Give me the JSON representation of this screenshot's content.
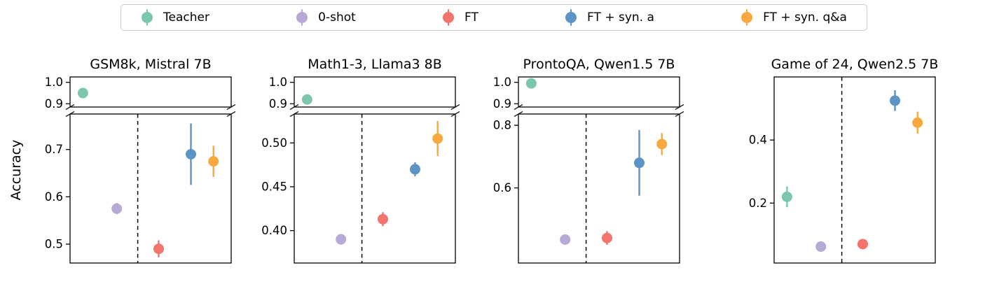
{
  "figure": {
    "ylabel": "Accuracy"
  },
  "colors": {
    "teacher": "#7CC6AE",
    "zero_shot": "#B7A9D5",
    "ft": "#F3746C",
    "ft_syn_a": "#5C94C6",
    "ft_syn_qa": "#F7A940",
    "axis": "#000000",
    "legend_border": "#CCCCCC"
  },
  "legend": {
    "position": "top-center",
    "items": [
      {
        "label": "Teacher",
        "color_key": "teacher"
      },
      {
        "label": "0-shot",
        "color_key": "zero_shot"
      },
      {
        "label": "FT",
        "color_key": "ft"
      },
      {
        "label": "FT + syn. a",
        "color_key": "ft_syn_a"
      },
      {
        "label": "FT + syn. q&a",
        "color_key": "ft_syn_qa"
      }
    ]
  },
  "chart_data": [
    {
      "type": "scatter",
      "title": "GSM8k, Mistral 7B",
      "ylabel": "Accuracy",
      "xlabel": "",
      "grid": false,
      "broken_axis": true,
      "divider_x": 0.42,
      "top_panel": {
        "ylim": [
          0.885,
          1.025
        ],
        "yticks": [
          {
            "v": 1.0,
            "label": "1.0"
          },
          {
            "v": 0.9,
            "label": "0.9"
          }
        ]
      },
      "bottom_panel": {
        "ylim": [
          0.46,
          0.775
        ],
        "yticks": [
          {
            "v": 0.7,
            "label": "0.7"
          },
          {
            "v": 0.6,
            "label": "0.6"
          },
          {
            "v": 0.5,
            "label": "0.5"
          }
        ]
      },
      "points": [
        {
          "series": "Teacher",
          "color_key": "teacher",
          "panel": "top",
          "x": 0.08,
          "y": 0.95,
          "err": 0.012
        },
        {
          "series": "0-shot",
          "color_key": "zero_shot",
          "panel": "bottom",
          "x": 0.29,
          "y": 0.575,
          "err": 0.012
        },
        {
          "series": "FT",
          "color_key": "ft",
          "panel": "bottom",
          "x": 0.55,
          "y": 0.49,
          "err": 0.018
        },
        {
          "series": "FT + syn. a",
          "color_key": "ft_syn_a",
          "panel": "bottom",
          "x": 0.75,
          "y": 0.69,
          "err": 0.065
        },
        {
          "series": "FT + syn. q&a",
          "color_key": "ft_syn_qa",
          "panel": "bottom",
          "x": 0.89,
          "y": 0.675,
          "err": 0.033
        }
      ]
    },
    {
      "type": "scatter",
      "title": "Math1-3, Llama3 8B",
      "ylabel": "Accuracy",
      "xlabel": "",
      "grid": false,
      "broken_axis": true,
      "divider_x": 0.42,
      "top_panel": {
        "ylim": [
          0.885,
          1.025
        ],
        "yticks": [
          {
            "v": 1.0,
            "label": "1.0"
          },
          {
            "v": 0.9,
            "label": "0.9"
          }
        ]
      },
      "bottom_panel": {
        "ylim": [
          0.363,
          0.533
        ],
        "yticks": [
          {
            "v": 0.5,
            "label": "0.50"
          },
          {
            "v": 0.45,
            "label": "0.45"
          },
          {
            "v": 0.4,
            "label": "0.40"
          }
        ]
      },
      "points": [
        {
          "series": "Teacher",
          "color_key": "teacher",
          "panel": "top",
          "x": 0.08,
          "y": 0.92,
          "err": 0.008
        },
        {
          "series": "0-shot",
          "color_key": "zero_shot",
          "panel": "bottom",
          "x": 0.29,
          "y": 0.39,
          "err": 0.006
        },
        {
          "series": "FT",
          "color_key": "ft",
          "panel": "bottom",
          "x": 0.55,
          "y": 0.413,
          "err": 0.008
        },
        {
          "series": "FT + syn. a",
          "color_key": "ft_syn_a",
          "panel": "bottom",
          "x": 0.75,
          "y": 0.47,
          "err": 0.008
        },
        {
          "series": "FT + syn. q&a",
          "color_key": "ft_syn_qa",
          "panel": "bottom",
          "x": 0.89,
          "y": 0.505,
          "err": 0.02
        }
      ]
    },
    {
      "type": "scatter",
      "title": "ProntoQA, Qwen1.5 7B",
      "ylabel": "Accuracy",
      "xlabel": "",
      "grid": false,
      "broken_axis": true,
      "divider_x": 0.42,
      "top_panel": {
        "ylim": [
          0.885,
          1.025
        ],
        "yticks": [
          {
            "v": 1.0,
            "label": "1.0"
          },
          {
            "v": 0.9,
            "label": "0.9"
          }
        ]
      },
      "bottom_panel": {
        "ylim": [
          0.36,
          0.836
        ],
        "yticks": [
          {
            "v": 0.8,
            "label": "0.8"
          },
          {
            "v": 0.6,
            "label": "0.6"
          }
        ]
      },
      "points": [
        {
          "series": "Teacher",
          "color_key": "teacher",
          "panel": "top",
          "x": 0.08,
          "y": 0.995,
          "err": 0.005
        },
        {
          "series": "0-shot",
          "color_key": "zero_shot",
          "panel": "bottom",
          "x": 0.29,
          "y": 0.435,
          "err": 0.01
        },
        {
          "series": "FT",
          "color_key": "ft",
          "panel": "bottom",
          "x": 0.55,
          "y": 0.44,
          "err": 0.022
        },
        {
          "series": "FT + syn. a",
          "color_key": "ft_syn_a",
          "panel": "bottom",
          "x": 0.75,
          "y": 0.68,
          "err": 0.105
        },
        {
          "series": "FT + syn. q&a",
          "color_key": "ft_syn_qa",
          "panel": "bottom",
          "x": 0.89,
          "y": 0.74,
          "err": 0.035
        }
      ]
    },
    {
      "type": "scatter",
      "title": "Game of 24, Qwen2.5 7B",
      "ylabel": "Accuracy",
      "xlabel": "",
      "grid": false,
      "broken_axis": false,
      "divider_x": 0.42,
      "panel": {
        "ylim": [
          0.01,
          0.6
        ],
        "yticks": [
          {
            "v": 0.4,
            "label": "0.4"
          },
          {
            "v": 0.2,
            "label": "0.2"
          }
        ]
      },
      "points": [
        {
          "series": "Teacher",
          "color_key": "teacher",
          "panel": "main",
          "x": 0.08,
          "y": 0.22,
          "err": 0.033
        },
        {
          "series": "0-shot",
          "color_key": "zero_shot",
          "panel": "main",
          "x": 0.29,
          "y": 0.062,
          "err": 0.008
        },
        {
          "series": "FT",
          "color_key": "ft",
          "panel": "main",
          "x": 0.55,
          "y": 0.07,
          "err": 0.01
        },
        {
          "series": "FT + syn. a",
          "color_key": "ft_syn_a",
          "panel": "main",
          "x": 0.75,
          "y": 0.525,
          "err": 0.033
        },
        {
          "series": "FT + syn. q&a",
          "color_key": "ft_syn_qa",
          "panel": "main",
          "x": 0.89,
          "y": 0.455,
          "err": 0.035
        }
      ]
    }
  ]
}
